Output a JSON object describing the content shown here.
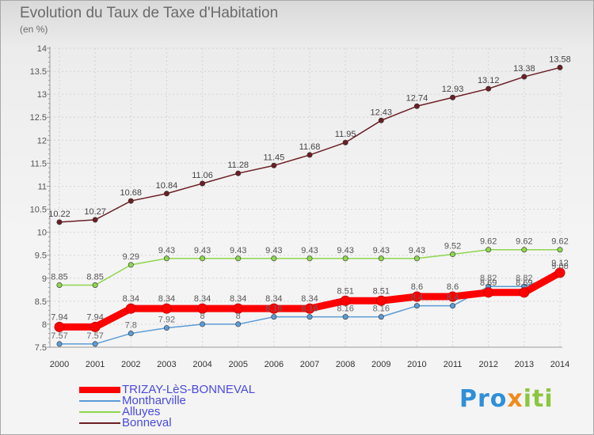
{
  "header": {
    "title": "Evolution du Taux de Taxe d'Habitation",
    "subtitle": "(en %)"
  },
  "logo": {
    "part1": "Pro",
    "part2": "x",
    "part3": "iti"
  },
  "colors": {
    "trizay": "#ff0000",
    "montharville": "#5b9bd5",
    "alluyes": "#8ed64f",
    "bonneval": "#6b1f24"
  },
  "chart_data": {
    "type": "line",
    "title": "Evolution du Taux de Taxe d'Habitation",
    "subtitle": "(en %)",
    "xlabel": "",
    "ylabel": "",
    "x": [
      "2000",
      "2001",
      "2002",
      "2003",
      "2004",
      "2005",
      "2006",
      "2007",
      "2008",
      "2009",
      "2010",
      "2011",
      "2012",
      "2013",
      "2014"
    ],
    "ylim": [
      7.5,
      14
    ],
    "yticks": [
      "7.5",
      "8",
      "8.5",
      "9",
      "9.5",
      "10",
      "10.5",
      "11",
      "11.5",
      "12",
      "12.5",
      "13",
      "13.5",
      "14"
    ],
    "grid": true,
    "legend_position": "bottom-left",
    "series": [
      {
        "name": "TRIZAY-LèS-BONNEVAL",
        "color": "#ff0000",
        "values": [
          7.94,
          7.94,
          8.34,
          8.34,
          8.34,
          8.34,
          8.34,
          8.34,
          8.51,
          8.51,
          8.6,
          8.6,
          8.69,
          8.69,
          9.12
        ],
        "labels": [
          "7.94",
          "7.94",
          "8.34",
          "8.34",
          "8.34",
          "8.34",
          "8.34",
          "8.34",
          "8.51",
          "8.51",
          "8.6",
          "8.6",
          "8.69",
          "8.69",
          "9.12"
        ]
      },
      {
        "name": "Montharville",
        "color": "#5b9bd5",
        "values": [
          7.57,
          7.57,
          7.8,
          7.92,
          8,
          8,
          8.16,
          8.16,
          8.16,
          8.16,
          8.4,
          8.4,
          8.82,
          8.82,
          9.08
        ],
        "labels": [
          "7.57",
          "7.57",
          "7.8",
          "7.92",
          "8",
          "8",
          "8.16",
          "8.16",
          "8.16",
          "8.16",
          "8.4",
          "8.4",
          "8.82",
          "8.82",
          "9.08"
        ]
      },
      {
        "name": "Alluyes",
        "color": "#8ed64f",
        "values": [
          8.85,
          8.85,
          9.29,
          9.43,
          9.43,
          9.43,
          9.43,
          9.43,
          9.43,
          9.43,
          9.43,
          9.52,
          9.62,
          9.62,
          9.62
        ],
        "labels": [
          "8.85",
          "8.85",
          "9.29",
          "9.43",
          "9.43",
          "9.43",
          "9.43",
          "9.43",
          "9.43",
          "9.43",
          "9.43",
          "9.52",
          "9.62",
          "9.62",
          "9.62"
        ]
      },
      {
        "name": "Bonneval",
        "color": "#6b1f24",
        "values": [
          10.22,
          10.27,
          10.68,
          10.84,
          11.06,
          11.28,
          11.45,
          11.68,
          11.95,
          12.43,
          12.74,
          12.93,
          13.12,
          13.38,
          13.58
        ],
        "labels": [
          "10.22",
          "10.27",
          "10.68",
          "10.84",
          "11.06",
          "11.28",
          "11.45",
          "11.68",
          "11.95",
          "12.43",
          "12.74",
          "12.93",
          "13.12",
          "13.38",
          "13.58"
        ]
      }
    ]
  }
}
